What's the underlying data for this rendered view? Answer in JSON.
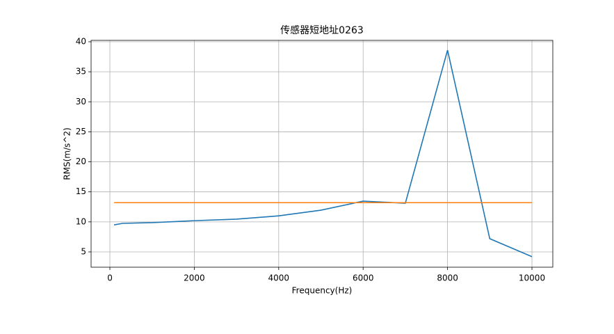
{
  "chart_data": {
    "type": "line",
    "title": "传感器短地址0263",
    "x_label": "Frequency(Hz)",
    "y_label": "RMS(m/s^2)",
    "series": [
      {
        "color": "#1f77b4",
        "x": [
          100,
          300,
          1000,
          2000,
          3000,
          4000,
          5000,
          6000,
          7000,
          8000,
          9000,
          10000
        ],
        "values": [
          9.5,
          9.75,
          9.87,
          10.2,
          10.45,
          11.0,
          11.95,
          13.45,
          13.1,
          38.6,
          7.2,
          4.2
        ]
      },
      {
        "color": "#ff7f0e",
        "x": [
          100,
          10000
        ],
        "values": [
          13.2,
          13.2
        ]
      }
    ],
    "xlim": [
      -445,
      10494
    ],
    "ylim": [
      2.45,
      40.23
    ],
    "xticks": [
      0,
      2000,
      4000,
      6000,
      8000,
      10000
    ],
    "yticks": [
      5,
      10,
      15,
      20,
      25,
      30,
      35,
      40
    ],
    "grid": true
  }
}
